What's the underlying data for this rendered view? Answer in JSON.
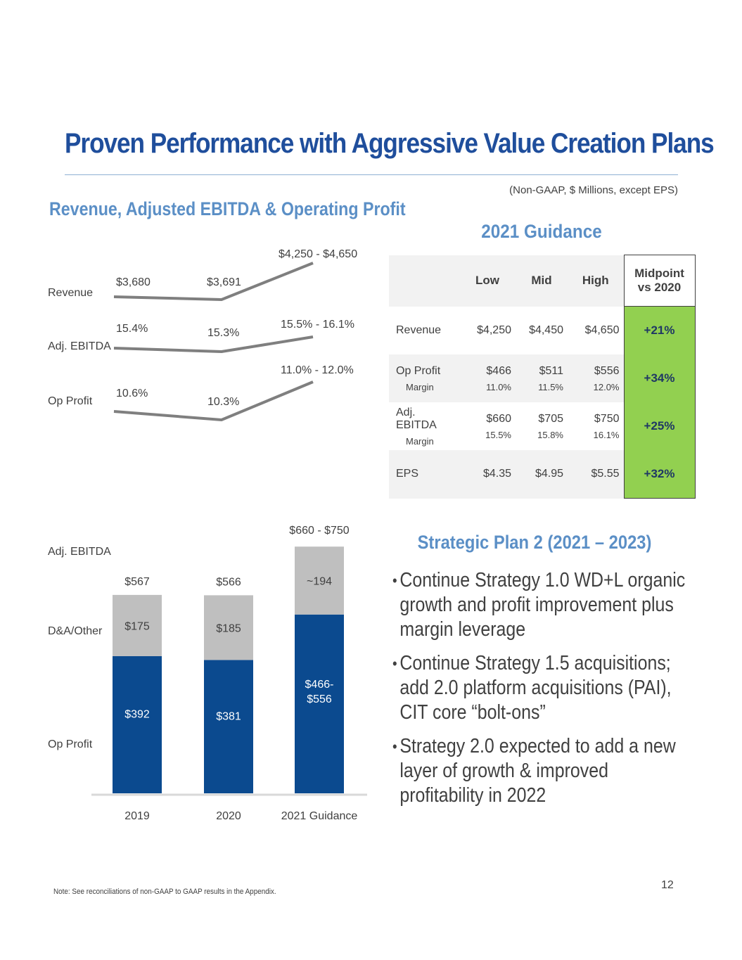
{
  "title": "Proven Performance with Aggressive Value Creation Plans",
  "units_note": "(Non-GAAP, $ Millions, except EPS)",
  "left_heading": "Revenue, Adjusted EBITDA & Operating Profit",
  "line_chart": {
    "row_labels": [
      "Revenue",
      "Adj. EBITDA",
      "Op Profit"
    ],
    "revenue": [
      "$3,680",
      "$3,691",
      "$4,250 - $4,650"
    ],
    "ebitda": [
      "15.4%",
      "15.3%",
      "15.5% - 16.1%"
    ],
    "op": [
      "10.6%",
      "10.3%",
      "11.0% - 12.0%"
    ]
  },
  "chart_data": {
    "type": "bar",
    "stacked": true,
    "categories": [
      "2019",
      "2020",
      "2021 Guidance"
    ],
    "series": [
      {
        "name": "Op Profit",
        "values": [
          392,
          381,
          511
        ],
        "labels": [
          "$392",
          "$381",
          "$466-\n$556"
        ],
        "color": "#0b4a8f"
      },
      {
        "name": "D&A/Other",
        "values": [
          175,
          185,
          194
        ],
        "labels": [
          "$175",
          "$185",
          "~194"
        ],
        "color": "#bfbfbf"
      }
    ],
    "totals": [
      "$567",
      "$566",
      "$660 - $750"
    ],
    "ylim": [
      0,
      820
    ],
    "row_labels": [
      "Adj. EBITDA",
      "D&A/Other",
      "Op Profit"
    ],
    "legend": "none"
  },
  "guidance": {
    "title": "2021 Guidance",
    "headers": [
      "",
      "Low",
      "Mid",
      "High",
      "Midpoint vs 2020"
    ],
    "rows": [
      {
        "label": "Revenue",
        "sub_label": "",
        "low": "$4,250",
        "mid": "$4,450",
        "high": "$4,650",
        "low_sub": "",
        "mid_sub": "",
        "high_sub": "",
        "change": "+21%"
      },
      {
        "label": "Op Profit",
        "sub_label": "Margin",
        "low": "$466",
        "mid": "$511",
        "high": "$556",
        "low_sub": "11.0%",
        "mid_sub": "11.5%",
        "high_sub": "12.0%",
        "change": "+34%"
      },
      {
        "label": "Adj. EBITDA",
        "sub_label": "Margin",
        "low": "$660",
        "mid": "$705",
        "high": "$750",
        "low_sub": "15.5%",
        "mid_sub": "15.8%",
        "high_sub": "16.1%",
        "change": "+25%"
      },
      {
        "label": "EPS",
        "sub_label": "",
        "low": "$4.35",
        "mid": "$4.95",
        "high": "$5.55",
        "low_sub": "",
        "mid_sub": "",
        "high_sub": "",
        "change": "+32%"
      }
    ]
  },
  "plan_heading": "Strategic Plan 2 (2021 – 2023)",
  "bullets": [
    "Continue Strategy 1.0 WD+L organic growth and profit improvement plus margin leverage",
    "Continue Strategy 1.5 acquisitions; add 2.0 platform acquisitions (PAI), CIT core “bolt-ons”",
    "Strategy 2.0 expected to add a new layer of growth & improved profitability in 2022"
  ],
  "note": "Note: See reconciliations of non-GAAP to GAAP results in the Appendix.",
  "page_number": "12"
}
